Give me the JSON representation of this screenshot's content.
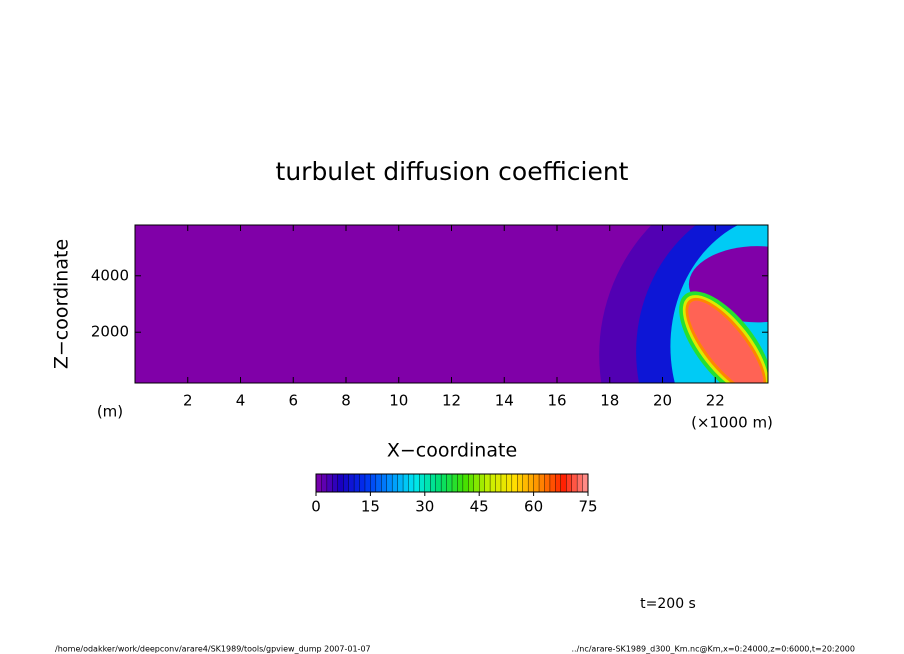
{
  "chart_data": {
    "type": "contour",
    "title": "turbulet diffusion coefficient",
    "x_label": "X−coordinate",
    "x_unit": "(×1000 m)",
    "y_label": "Z−coordinate",
    "y_unit": "(m)",
    "xlim": [
      0,
      24
    ],
    "xticks": [
      2,
      4,
      6,
      8,
      10,
      12,
      14,
      16,
      18,
      20,
      22
    ],
    "ylim": [
      200,
      5800
    ],
    "yticks": [
      2000,
      4000
    ],
    "field_levels": [
      0,
      3,
      10,
      25,
      0,
      38,
      50,
      62,
      72
    ],
    "colorbar": {
      "lim": [
        0,
        75
      ],
      "ticks": [
        0,
        15,
        30,
        45,
        60,
        75
      ],
      "colors": [
        "#8000a8",
        "#1800c0",
        "#0030f0",
        "#0090ff",
        "#00e8f0",
        "#00e070",
        "#40e000",
        "#c8f000",
        "#ffe000",
        "#ff9000",
        "#ff2000",
        "#ff9898"
      ]
    },
    "time_label": "t=200 s",
    "footer_left": "/home/odakker/work/deepconv/arare4/SK1989/tools/gpview_dump  2007-01-07",
    "footer_right": "../nc/arare-SK1989_d300_Km.nc@Km,x=0:24000,z=0:6000,t=20:2000"
  }
}
